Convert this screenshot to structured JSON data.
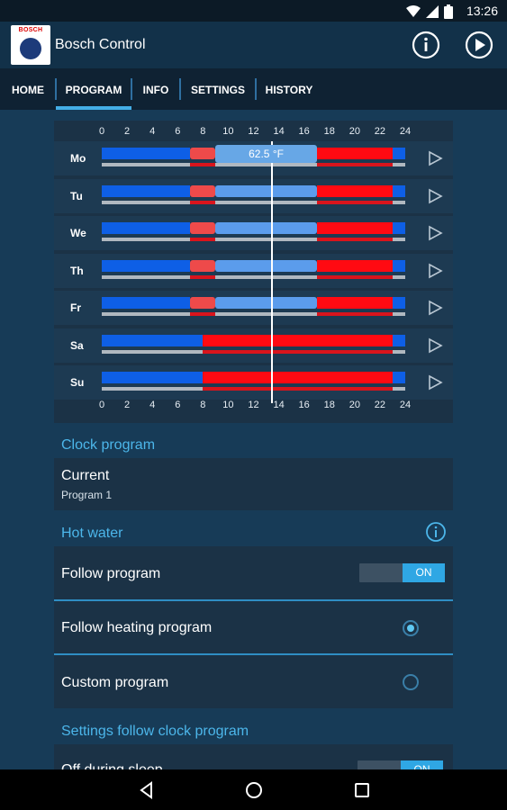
{
  "status": {
    "time": "13:26"
  },
  "app": {
    "title": "Bosch Control",
    "logo_text": "BOSCH",
    "info_icon": "info-circle-icon",
    "play_icon": "play-circle-icon"
  },
  "tabs": [
    {
      "label": "HOME",
      "active": false
    },
    {
      "label": "PROGRAM",
      "active": true
    },
    {
      "label": "INFO",
      "active": false
    },
    {
      "label": "SETTINGS",
      "active": false
    },
    {
      "label": "HISTORY",
      "active": false
    }
  ],
  "schedule": {
    "hour_ticks": [
      "0",
      "2",
      "4",
      "6",
      "8",
      "10",
      "12",
      "14",
      "16",
      "18",
      "20",
      "22",
      "24"
    ],
    "current_temp": "62.5 °F",
    "current_hour": 13.4,
    "colors": {
      "cold": "#0e5fe6",
      "transition": "#ee4a4a",
      "warm": "#ff0a12",
      "selected": "#5b9cec",
      "base": "#b0b8c0"
    },
    "days": [
      {
        "label": "Mo",
        "segments": [
          [
            0,
            7,
            "cold"
          ],
          [
            7,
            9,
            "transition"
          ],
          [
            9,
            17,
            "selected"
          ],
          [
            17,
            23,
            "warm"
          ],
          [
            23,
            24,
            "cold"
          ]
        ]
      },
      {
        "label": "Tu",
        "segments": [
          [
            0,
            7,
            "cold"
          ],
          [
            7,
            9,
            "transition"
          ],
          [
            9,
            17,
            "selected"
          ],
          [
            17,
            23,
            "warm"
          ],
          [
            23,
            24,
            "cold"
          ]
        ]
      },
      {
        "label": "We",
        "segments": [
          [
            0,
            7,
            "cold"
          ],
          [
            7,
            9,
            "transition"
          ],
          [
            9,
            17,
            "selected"
          ],
          [
            17,
            23,
            "warm"
          ],
          [
            23,
            24,
            "cold"
          ]
        ]
      },
      {
        "label": "Th",
        "segments": [
          [
            0,
            7,
            "cold"
          ],
          [
            7,
            9,
            "transition"
          ],
          [
            9,
            17,
            "selected"
          ],
          [
            17,
            23,
            "warm"
          ],
          [
            23,
            24,
            "cold"
          ]
        ]
      },
      {
        "label": "Fr",
        "segments": [
          [
            0,
            7,
            "cold"
          ],
          [
            7,
            9,
            "transition"
          ],
          [
            9,
            17,
            "selected"
          ],
          [
            17,
            23,
            "warm"
          ],
          [
            23,
            24,
            "cold"
          ]
        ]
      },
      {
        "label": "Sa",
        "segments": [
          [
            0,
            8,
            "cold"
          ],
          [
            8,
            23,
            "warm"
          ],
          [
            23,
            24,
            "cold"
          ]
        ]
      },
      {
        "label": "Su",
        "segments": [
          [
            0,
            8,
            "cold"
          ],
          [
            8,
            23,
            "warm"
          ],
          [
            23,
            24,
            "cold"
          ]
        ]
      }
    ]
  },
  "clock_program": {
    "heading": "Clock program",
    "title": "Current",
    "value": "Program 1"
  },
  "hot_water": {
    "heading": "Hot water",
    "follow_program": {
      "label": "Follow program",
      "toggle": "ON"
    },
    "options": [
      {
        "label": "Follow heating program",
        "selected": true
      },
      {
        "label": "Custom program",
        "selected": false
      }
    ]
  },
  "settings_follow": {
    "heading": "Settings follow clock program",
    "item_label": "Off during sleep",
    "toggle": "ON"
  }
}
